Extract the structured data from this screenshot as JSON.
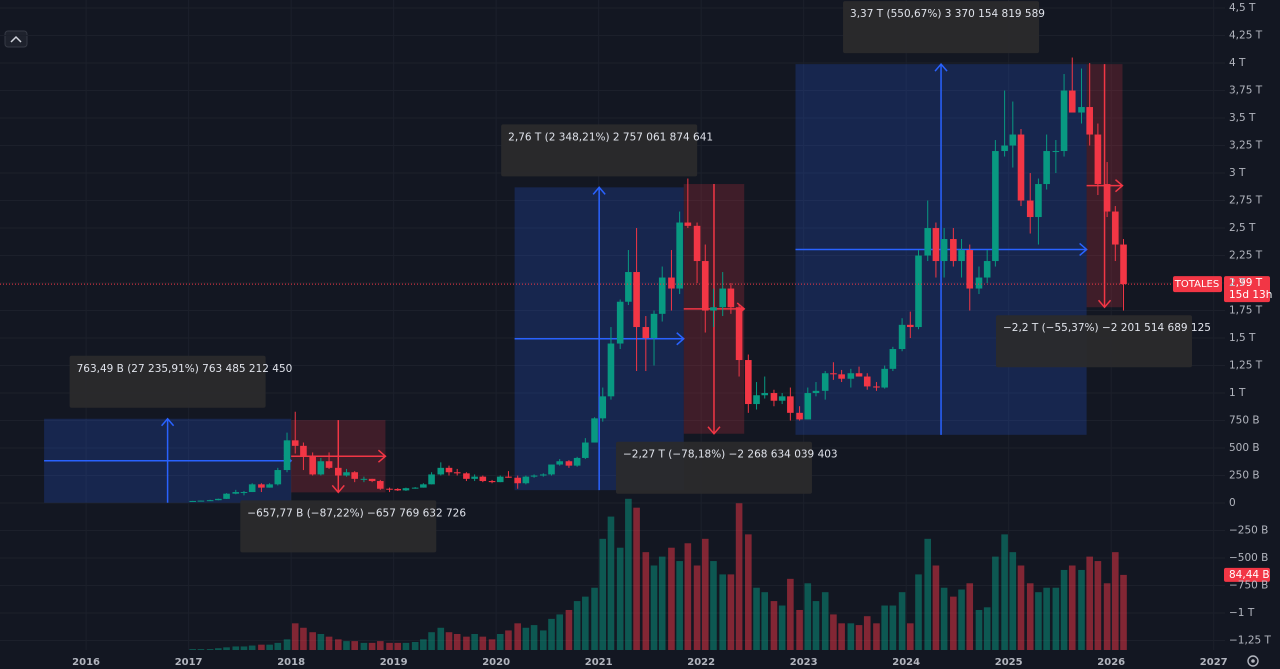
{
  "chart_data": {
    "type": "candlestick",
    "symbol": "TOTALES",
    "close_label": "1,99 T",
    "countdown": "15d 13h",
    "xlim": [
      2015.16,
      2027.11
    ],
    "ylim": [
      -1.336,
      4.573
    ],
    "grid": true,
    "up_color": "#089981",
    "down_color": "#f23645",
    "xticks": [
      2016,
      2017,
      2018,
      2019,
      2020,
      2021,
      2022,
      2023,
      2024,
      2025,
      2026,
      2027
    ],
    "yticks": [
      {
        "value": 4.5,
        "label": "4,5 T"
      },
      {
        "value": 4.25,
        "label": "4,25 T"
      },
      {
        "value": 4,
        "label": "4 T"
      },
      {
        "value": 3.75,
        "label": "3,75 T"
      },
      {
        "value": 3.5,
        "label": "3,5 T"
      },
      {
        "value": 3.25,
        "label": "3,25 T"
      },
      {
        "value": 3,
        "label": "3 T"
      },
      {
        "value": 2.75,
        "label": "2,75 T"
      },
      {
        "value": 2.5,
        "label": "2,5 T"
      },
      {
        "value": 2.25,
        "label": "2,25 T"
      },
      {
        "value": 2,
        "label": "2 T"
      },
      {
        "value": 1.75,
        "label": "1,75 T"
      },
      {
        "value": 1.5,
        "label": "1,5 T"
      },
      {
        "value": 1.25,
        "label": "1,25 T"
      },
      {
        "value": 1,
        "label": "1 T"
      },
      {
        "value": 0.75,
        "label": "750 B"
      },
      {
        "value": 0.5,
        "label": "500 B"
      },
      {
        "value": 0.25,
        "label": "250 B"
      },
      0,
      {
        "value": -0.25,
        "label": "−250 B"
      },
      {
        "value": -0.5,
        "label": "−500 B"
      },
      {
        "value": -0.75,
        "label": "−750 B"
      },
      {
        "value": -1,
        "label": "−1 T"
      },
      {
        "value": -1.25,
        "label": "−1,25 T"
      }
    ],
    "x": [
      2017,
      2017.08,
      2017.17,
      2017.25,
      2017.33,
      2017.42,
      2017.5,
      2017.58,
      2017.67,
      2017.75,
      2017.83,
      2017.92,
      2018,
      2018.08,
      2018.17,
      2018.25,
      2018.33,
      2018.42,
      2018.5,
      2018.58,
      2018.67,
      2018.75,
      2018.83,
      2018.92,
      2019,
      2019.08,
      2019.17,
      2019.25,
      2019.33,
      2019.42,
      2019.5,
      2019.58,
      2019.67,
      2019.75,
      2019.83,
      2019.92,
      2020,
      2020.08,
      2020.17,
      2020.25,
      2020.33,
      2020.42,
      2020.5,
      2020.58,
      2020.67,
      2020.75,
      2020.83,
      2020.92,
      2021,
      2021.08,
      2021.17,
      2021.25,
      2021.33,
      2021.42,
      2021.5,
      2021.58,
      2021.67,
      2021.75,
      2021.83,
      2021.92,
      2022,
      2022.08,
      2022.17,
      2022.25,
      2022.33,
      2022.42,
      2022.5,
      2022.58,
      2022.67,
      2022.75,
      2022.83,
      2022.92,
      2023,
      2023.08,
      2023.17,
      2023.25,
      2023.33,
      2023.42,
      2023.5,
      2023.58,
      2023.67,
      2023.75,
      2023.83,
      2023.92,
      2024,
      2024.08,
      2024.17,
      2024.25,
      2024.33,
      2024.42,
      2024.5,
      2024.58,
      2024.67,
      2024.75,
      2024.83,
      2024.92,
      2025,
      2025.08,
      2025.17,
      2025.25,
      2025.33,
      2025.42,
      2025.5,
      2025.58,
      2025.67,
      2025.75,
      2025.83,
      2025.92,
      2026,
      2026.08
    ],
    "ohlc": [
      [
        0.018,
        0.02,
        0.017,
        0.019
      ],
      [
        0.019,
        0.023,
        0.018,
        0.022
      ],
      [
        0.022,
        0.03,
        0.02,
        0.026
      ],
      [
        0.026,
        0.04,
        0.025,
        0.038
      ],
      [
        0.038,
        0.09,
        0.037,
        0.085
      ],
      [
        0.085,
        0.12,
        0.08,
        0.1
      ],
      [
        0.1,
        0.11,
        0.07,
        0.1
      ],
      [
        0.1,
        0.18,
        0.1,
        0.17
      ],
      [
        0.17,
        0.18,
        0.1,
        0.14
      ],
      [
        0.14,
        0.18,
        0.14,
        0.17
      ],
      [
        0.17,
        0.32,
        0.16,
        0.3
      ],
      [
        0.3,
        0.64,
        0.28,
        0.57
      ],
      [
        0.57,
        0.83,
        0.45,
        0.52
      ],
      [
        0.52,
        0.55,
        0.3,
        0.43
      ],
      [
        0.43,
        0.46,
        0.25,
        0.26
      ],
      [
        0.26,
        0.41,
        0.25,
        0.38
      ],
      [
        0.38,
        0.46,
        0.31,
        0.32
      ],
      [
        0.32,
        0.34,
        0.24,
        0.25
      ],
      [
        0.25,
        0.31,
        0.24,
        0.28
      ],
      [
        0.28,
        0.29,
        0.19,
        0.22
      ],
      [
        0.22,
        0.24,
        0.19,
        0.22
      ],
      [
        0.22,
        0.22,
        0.19,
        0.2
      ],
      [
        0.2,
        0.21,
        0.12,
        0.13
      ],
      [
        0.13,
        0.14,
        0.1,
        0.128
      ],
      [
        0.128,
        0.135,
        0.11,
        0.115
      ],
      [
        0.115,
        0.14,
        0.11,
        0.135
      ],
      [
        0.135,
        0.145,
        0.13,
        0.14
      ],
      [
        0.14,
        0.18,
        0.14,
        0.17
      ],
      [
        0.17,
        0.28,
        0.17,
        0.26
      ],
      [
        0.26,
        0.37,
        0.25,
        0.32
      ],
      [
        0.32,
        0.34,
        0.25,
        0.28
      ],
      [
        0.28,
        0.31,
        0.25,
        0.27
      ],
      [
        0.27,
        0.28,
        0.2,
        0.22
      ],
      [
        0.22,
        0.26,
        0.2,
        0.24
      ],
      [
        0.24,
        0.25,
        0.19,
        0.2
      ],
      [
        0.2,
        0.21,
        0.18,
        0.19
      ],
      [
        0.19,
        0.25,
        0.19,
        0.24
      ],
      [
        0.24,
        0.29,
        0.23,
        0.23
      ],
      [
        0.23,
        0.25,
        0.13,
        0.18
      ],
      [
        0.18,
        0.25,
        0.17,
        0.24
      ],
      [
        0.24,
        0.26,
        0.23,
        0.25
      ],
      [
        0.25,
        0.27,
        0.24,
        0.26
      ],
      [
        0.26,
        0.35,
        0.25,
        0.35
      ],
      [
        0.35,
        0.4,
        0.34,
        0.38
      ],
      [
        0.38,
        0.39,
        0.32,
        0.34
      ],
      [
        0.34,
        0.42,
        0.33,
        0.41
      ],
      [
        0.41,
        0.59,
        0.4,
        0.55
      ],
      [
        0.55,
        0.78,
        0.55,
        0.77
      ],
      [
        0.77,
        1.05,
        0.74,
        0.97
      ],
      [
        0.97,
        1.6,
        0.94,
        1.45
      ],
      [
        1.45,
        1.85,
        1.4,
        1.83
      ],
      [
        1.83,
        2.3,
        1.8,
        2.1
      ],
      [
        2.1,
        2.5,
        1.2,
        1.6
      ],
      [
        1.6,
        1.7,
        1.2,
        1.5
      ],
      [
        1.5,
        1.75,
        1.25,
        1.72
      ],
      [
        1.72,
        2.15,
        1.65,
        2.05
      ],
      [
        2.05,
        2.3,
        1.75,
        1.95
      ],
      [
        1.95,
        2.65,
        1.9,
        2.55
      ],
      [
        2.55,
        2.95,
        2.5,
        2.52
      ],
      [
        2.52,
        2.55,
        2.0,
        2.2
      ],
      [
        2.2,
        2.35,
        1.55,
        1.75
      ],
      [
        1.75,
        1.95,
        1.6,
        1.78
      ],
      [
        1.78,
        2.1,
        1.7,
        1.95
      ],
      [
        1.95,
        2.0,
        1.72,
        1.78
      ],
      [
        1.78,
        1.8,
        1.15,
        1.3
      ],
      [
        1.3,
        1.35,
        0.82,
        0.9
      ],
      [
        0.9,
        1.1,
        0.85,
        0.98
      ],
      [
        0.98,
        1.15,
        0.95,
        1.0
      ],
      [
        1.0,
        1.03,
        0.88,
        0.93
      ],
      [
        0.93,
        1.0,
        0.9,
        0.97
      ],
      [
        0.97,
        1.05,
        0.75,
        0.82
      ],
      [
        0.82,
        0.88,
        0.75,
        0.76
      ],
      [
        0.76,
        1.05,
        0.76,
        1.0
      ],
      [
        1.0,
        1.1,
        0.97,
        1.02
      ],
      [
        1.02,
        1.2,
        0.94,
        1.18
      ],
      [
        1.18,
        1.28,
        1.12,
        1.17
      ],
      [
        1.17,
        1.21,
        1.1,
        1.13
      ],
      [
        1.13,
        1.22,
        1.05,
        1.18
      ],
      [
        1.18,
        1.24,
        1.15,
        1.15
      ],
      [
        1.15,
        1.18,
        1.03,
        1.06
      ],
      [
        1.06,
        1.1,
        1.02,
        1.05
      ],
      [
        1.05,
        1.25,
        1.04,
        1.22
      ],
      [
        1.22,
        1.42,
        1.2,
        1.4
      ],
      [
        1.4,
        1.68,
        1.38,
        1.62
      ],
      [
        1.62,
        1.74,
        1.5,
        1.6
      ],
      [
        1.6,
        2.3,
        1.58,
        2.25
      ],
      [
        2.25,
        2.75,
        2.2,
        2.5
      ],
      [
        2.5,
        2.55,
        2.05,
        2.2
      ],
      [
        2.2,
        2.5,
        2.05,
        2.4
      ],
      [
        2.4,
        2.5,
        2.15,
        2.2
      ],
      [
        2.2,
        2.4,
        2.05,
        2.3
      ],
      [
        2.3,
        2.35,
        1.75,
        1.95
      ],
      [
        1.95,
        2.15,
        1.9,
        2.05
      ],
      [
        2.05,
        2.3,
        2.0,
        2.2
      ],
      [
        2.2,
        3.3,
        2.15,
        3.2
      ],
      [
        3.2,
        3.75,
        3.15,
        3.25
      ],
      [
        3.25,
        3.65,
        3.05,
        3.35
      ],
      [
        3.35,
        3.4,
        2.7,
        2.75
      ],
      [
        2.75,
        3.0,
        2.45,
        2.6
      ],
      [
        2.6,
        2.95,
        2.35,
        2.9
      ],
      [
        2.9,
        3.35,
        2.85,
        3.2
      ],
      [
        3.2,
        3.3,
        3.0,
        3.2
      ],
      [
        3.2,
        3.9,
        3.15,
        3.75
      ],
      [
        3.75,
        4.05,
        3.6,
        3.55
      ],
      [
        3.55,
        3.95,
        3.45,
        3.6
      ],
      [
        3.6,
        4.0,
        3.25,
        3.35
      ],
      [
        3.35,
        3.45,
        2.8,
        2.9
      ],
      [
        2.9,
        3.1,
        2.6,
        2.65
      ],
      [
        2.65,
        2.7,
        2.2,
        2.35
      ],
      [
        2.35,
        2.4,
        1.75,
        1.99
      ]
    ],
    "volume_lim": [
      0,
      190
    ],
    "volume": [
      1,
      1,
      1,
      2,
      3,
      4,
      4,
      5,
      6,
      6,
      8,
      12,
      30,
      25,
      20,
      18,
      15,
      12,
      10,
      10,
      8,
      8,
      10,
      8,
      8,
      8,
      9,
      12,
      20,
      25,
      20,
      18,
      15,
      18,
      15,
      12,
      18,
      22,
      30,
      25,
      28,
      22,
      35,
      40,
      45,
      55,
      60,
      70,
      125,
      150,
      115,
      170,
      160,
      110,
      95,
      105,
      115,
      100,
      120,
      95,
      125,
      100,
      85,
      85,
      165,
      130,
      70,
      65,
      55,
      50,
      80,
      45,
      75,
      55,
      65,
      40,
      30,
      30,
      28,
      38,
      30,
      50,
      50,
      65,
      30,
      85,
      125,
      95,
      70,
      60,
      68,
      75,
      45,
      48,
      105,
      130,
      110,
      95,
      75,
      65,
      70,
      70,
      90,
      95,
      90,
      105,
      100,
      75,
      110,
      84.44
    ],
    "volume_value_labels": {
      "109": "84,44 B"
    },
    "measurements": [
      {
        "label": "763,49 B (27 235,91%) 763 485 212 450",
        "x0": 2015.59,
        "x1": 2018.0,
        "from": 0.0028,
        "to": 0.766
      },
      {
        "label": "−657,77 B (−87,22%) −657 769 632 726",
        "x0": 2018.0,
        "x1": 2018.92,
        "from": 0.754,
        "to": 0.097
      },
      {
        "label": "2,76 T (2 348,21%) 2 757 061 874 641",
        "x0": 2020.18,
        "x1": 2021.83,
        "from": 0.117,
        "to": 2.87
      },
      {
        "label": "−2,27 T (−78,18%) −2 268 634 039 403",
        "x0": 2021.83,
        "x1": 2022.42,
        "from": 2.9,
        "to": 0.63
      },
      {
        "label": "3,37 T (550,67%) 3 370 154 819 589",
        "x0": 2022.92,
        "x1": 2025.76,
        "from": 0.62,
        "to": 3.99
      },
      {
        "label": "−2,2 T (−55,37%) −2 201 514 689 125",
        "x0": 2025.76,
        "x1": 2026.11,
        "from": 3.99,
        "to": 1.78
      }
    ]
  }
}
